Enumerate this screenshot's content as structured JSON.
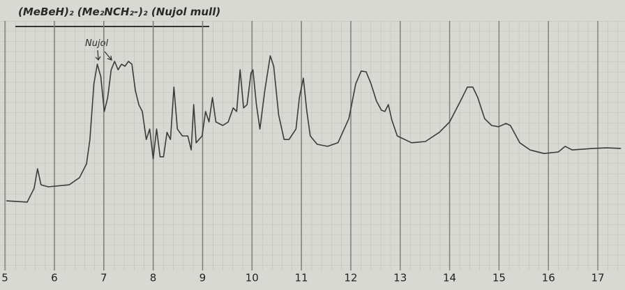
{
  "chart_data": {
    "type": "line",
    "title": "(MeBeH)₂ (Me₂NCH₂-)₂ (Nujol mull)",
    "annotations": [
      "Nujol"
    ],
    "color": "#3a3a3a",
    "grid": true,
    "xlim": [
      4.9,
      17.55
    ],
    "xticks": [
      5,
      6,
      7,
      8,
      9,
      10,
      11,
      12,
      13,
      14,
      15,
      16,
      17
    ],
    "ylim": [
      0,
      100
    ],
    "x": [
      5.03,
      5.45,
      5.59,
      5.66,
      5.73,
      5.88,
      6.3,
      6.51,
      6.65,
      6.72,
      6.8,
      6.87,
      6.94,
      7.01,
      7.08,
      7.15,
      7.22,
      7.29,
      7.36,
      7.43,
      7.5,
      7.57,
      7.64,
      7.71,
      7.78,
      7.86,
      7.93,
      8.0,
      8.07,
      8.14,
      8.21,
      8.28,
      8.35,
      8.42,
      8.49,
      8.59,
      8.7,
      8.77,
      8.82,
      8.87,
      8.99,
      9.06,
      9.13,
      9.2,
      9.27,
      9.41,
      9.52,
      9.62,
      9.69,
      9.76,
      9.83,
      9.9,
      9.98,
      10.02,
      10.09,
      10.16,
      10.26,
      10.37,
      10.44,
      10.54,
      10.65,
      10.75,
      10.89,
      10.96,
      11.04,
      11.11,
      11.18,
      11.32,
      11.53,
      11.74,
      11.96,
      12.1,
      12.21,
      12.31,
      12.41,
      12.52,
      12.62,
      12.69,
      12.76,
      12.83,
      12.94,
      13.23,
      13.51,
      13.79,
      14.0,
      14.22,
      14.36,
      14.47,
      14.57,
      14.71,
      14.85,
      14.99,
      15.14,
      15.23,
      15.42,
      15.63,
      15.91,
      16.2,
      16.34,
      16.48,
      16.9,
      17.18,
      17.47
    ],
    "values": [
      29.3,
      28.8,
      34.2,
      41.9,
      35.6,
      34.8,
      35.6,
      38.4,
      43.8,
      53.4,
      75.3,
      83.0,
      78.1,
      64.4,
      69.9,
      80.8,
      84.1,
      80.8,
      83.0,
      82.2,
      84.1,
      83.0,
      72.6,
      67.1,
      64.4,
      53.4,
      57.5,
      45.8,
      57.5,
      46.6,
      46.6,
      56.2,
      53.4,
      74.0,
      57.5,
      54.8,
      54.8,
      49.3,
      67.1,
      52.1,
      54.8,
      64.4,
      60.3,
      69.9,
      60.3,
      58.9,
      60.3,
      65.8,
      64.4,
      80.8,
      65.8,
      67.1,
      79.5,
      80.8,
      67.1,
      57.5,
      72.6,
      86.3,
      82.2,
      63.0,
      53.4,
      53.4,
      57.5,
      69.9,
      77.5,
      64.4,
      54.8,
      51.5,
      50.7,
      52.1,
      61.6,
      75.3,
      80.3,
      80.0,
      75.3,
      68.5,
      64.9,
      64.4,
      67.1,
      61.1,
      54.8,
      52.1,
      52.6,
      56.2,
      60.3,
      68.5,
      74.0,
      74.0,
      69.9,
      61.6,
      58.9,
      58.4,
      59.7,
      58.9,
      52.1,
      49.3,
      47.9,
      48.5,
      50.7,
      49.3,
      49.9,
      50.1,
      49.9
    ]
  }
}
